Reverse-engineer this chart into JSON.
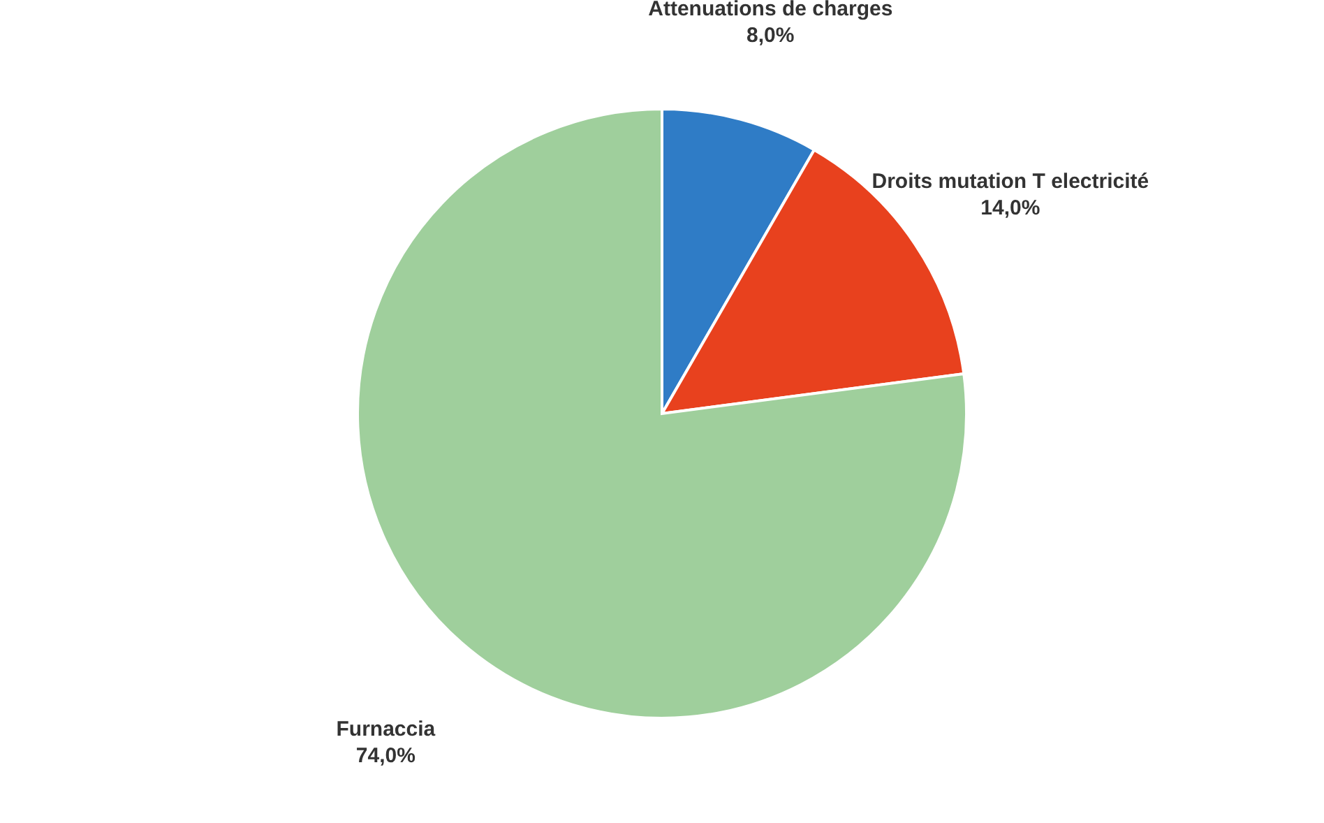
{
  "chart_data": {
    "type": "pie",
    "categories": [
      "Attenuations de charges",
      "Droits mutation T electricité",
      "Furnaccia"
    ],
    "values": [
      8.0,
      14.0,
      74.0
    ],
    "colors": [
      "#2f7cc6",
      "#e8411e",
      "#9fcf9c"
    ],
    "value_labels": [
      "8,0%",
      "14,0%",
      "74,0%"
    ]
  }
}
